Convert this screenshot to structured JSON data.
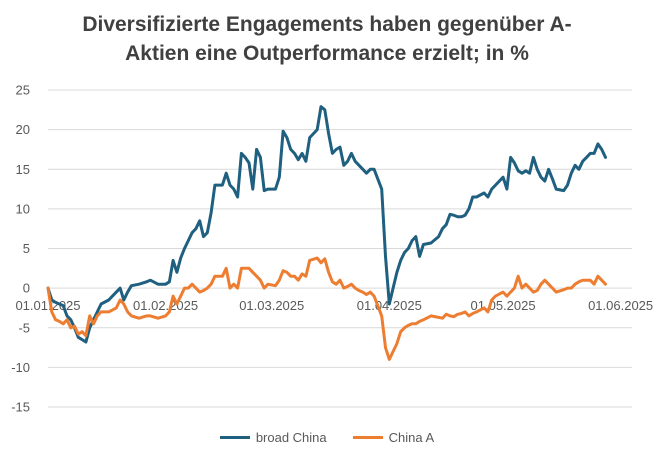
{
  "chart_data": {
    "type": "line",
    "title_line1": "Diversifizierte Engagements haben gegenüber A-",
    "title_line2": "Aktien eine Outperformance erzielt; in %",
    "ylim": [
      -15,
      25
    ],
    "y_ticks": [
      "25",
      "20",
      "15",
      "10",
      "5",
      "0",
      "-5",
      "-10",
      "-15"
    ],
    "x_tick_labels": [
      "01.01.2025",
      "01.02.2025",
      "01.03.2025",
      "01.04.2025",
      "01.05.2025",
      "01.06.2025"
    ],
    "x_tick_days": [
      0,
      31,
      59,
      90,
      120,
      151
    ],
    "legend_position": "bottom",
    "grid": "horizontal",
    "series": [
      {
        "name": "broad China",
        "color": "#1f5f7f",
        "points": [
          [
            0,
            0
          ],
          [
            1,
            -1.5
          ],
          [
            2,
            -1.8
          ],
          [
            3,
            -2.0
          ],
          [
            4,
            -2.2
          ],
          [
            5,
            -3.5
          ],
          [
            6,
            -4.0
          ],
          [
            7,
            -5.0
          ],
          [
            8,
            -6.2
          ],
          [
            9,
            -6.5
          ],
          [
            10,
            -6.8
          ],
          [
            11,
            -5.0
          ],
          [
            12,
            -4.0
          ],
          [
            13,
            -3.0
          ],
          [
            14,
            -2.0
          ],
          [
            16,
            -1.5
          ],
          [
            18,
            -0.5
          ],
          [
            19,
            0.0
          ],
          [
            20,
            -1.5
          ],
          [
            21,
            -0.5
          ],
          [
            22,
            0.3
          ],
          [
            24,
            0.5
          ],
          [
            26,
            0.8
          ],
          [
            27,
            1.0
          ],
          [
            29,
            0.5
          ],
          [
            31,
            0.5
          ],
          [
            32,
            0.8
          ],
          [
            33,
            3.5
          ],
          [
            34,
            2.0
          ],
          [
            35,
            3.8
          ],
          [
            36,
            5.0
          ],
          [
            37,
            6.0
          ],
          [
            38,
            7.0
          ],
          [
            39,
            7.5
          ],
          [
            40,
            8.5
          ],
          [
            41,
            6.5
          ],
          [
            42,
            7.0
          ],
          [
            43,
            9.5
          ],
          [
            44,
            13.0
          ],
          [
            46,
            13.0
          ],
          [
            47,
            14.5
          ],
          [
            48,
            13.0
          ],
          [
            49,
            12.5
          ],
          [
            50,
            11.5
          ],
          [
            51,
            17.0
          ],
          [
            52,
            16.5
          ],
          [
            53,
            15.8
          ],
          [
            54,
            12.5
          ],
          [
            55,
            17.5
          ],
          [
            56,
            16.5
          ],
          [
            57,
            12.3
          ],
          [
            58,
            12.5
          ],
          [
            60,
            12.5
          ],
          [
            61,
            14.0
          ],
          [
            62,
            19.8
          ],
          [
            63,
            19.0
          ],
          [
            64,
            17.5
          ],
          [
            65,
            17.0
          ],
          [
            66,
            16.2
          ],
          [
            67,
            17.0
          ],
          [
            68,
            16.0
          ],
          [
            69,
            19.0
          ],
          [
            71,
            20.0
          ],
          [
            72,
            22.9
          ],
          [
            73,
            22.5
          ],
          [
            74,
            19.5
          ],
          [
            75,
            17.0
          ],
          [
            76,
            17.5
          ],
          [
            77,
            17.8
          ],
          [
            78,
            15.5
          ],
          [
            79,
            16.0
          ],
          [
            80,
            17.0
          ],
          [
            81,
            16.0
          ],
          [
            82,
            15.5
          ],
          [
            83,
            15.0
          ],
          [
            84,
            14.5
          ],
          [
            85,
            15.0
          ],
          [
            86,
            15.0
          ],
          [
            88,
            12.5
          ],
          [
            89,
            4.0
          ],
          [
            90,
            -2.0
          ],
          [
            91,
            0.0
          ],
          [
            92,
            2.0
          ],
          [
            93,
            3.5
          ],
          [
            94,
            4.5
          ],
          [
            95,
            5.0
          ],
          [
            96,
            6.0
          ],
          [
            97,
            6.5
          ],
          [
            98,
            4.0
          ],
          [
            99,
            5.5
          ],
          [
            101,
            5.7
          ],
          [
            103,
            6.5
          ],
          [
            104,
            7.5
          ],
          [
            105,
            8.0
          ],
          [
            106,
            9.3
          ],
          [
            107,
            9.2
          ],
          [
            108,
            9.0
          ],
          [
            109,
            9.0
          ],
          [
            110,
            9.2
          ],
          [
            111,
            10.0
          ],
          [
            112,
            11.5
          ],
          [
            113,
            11.5
          ],
          [
            115,
            12.0
          ],
          [
            116,
            11.5
          ],
          [
            117,
            12.5
          ],
          [
            118,
            13.0
          ],
          [
            120,
            14.0
          ],
          [
            121,
            12.5
          ],
          [
            122,
            16.5
          ],
          [
            123,
            15.8
          ],
          [
            124,
            14.8
          ],
          [
            125,
            14.5
          ],
          [
            126,
            14.8
          ],
          [
            127,
            14.5
          ],
          [
            128,
            16.5
          ],
          [
            129,
            15.0
          ],
          [
            130,
            14.0
          ],
          [
            131,
            13.5
          ],
          [
            132,
            15.0
          ],
          [
            133,
            13.8
          ],
          [
            134,
            12.5
          ],
          [
            136,
            12.3
          ],
          [
            137,
            13.0
          ],
          [
            138,
            14.5
          ],
          [
            139,
            15.5
          ],
          [
            140,
            15.0
          ],
          [
            141,
            16.0
          ],
          [
            142,
            16.5
          ],
          [
            143,
            17.0
          ],
          [
            144,
            17.0
          ],
          [
            145,
            18.2
          ],
          [
            146,
            17.5
          ],
          [
            147,
            16.5
          ]
        ]
      },
      {
        "name": "China A",
        "color": "#ed7d31",
        "points": [
          [
            0,
            0
          ],
          [
            1,
            -3.0
          ],
          [
            2,
            -4.0
          ],
          [
            3,
            -4.2
          ],
          [
            4,
            -4.5
          ],
          [
            5,
            -4.0
          ],
          [
            6,
            -5.0
          ],
          [
            7,
            -4.8
          ],
          [
            8,
            -5.8
          ],
          [
            9,
            -5.5
          ],
          [
            10,
            -6.0
          ],
          [
            11,
            -3.5
          ],
          [
            12,
            -4.5
          ],
          [
            13,
            -3.5
          ],
          [
            14,
            -3.0
          ],
          [
            16,
            -3.0
          ],
          [
            18,
            -2.5
          ],
          [
            19,
            -1.5
          ],
          [
            20,
            -2.0
          ],
          [
            21,
            -3.0
          ],
          [
            22,
            -3.5
          ],
          [
            24,
            -3.8
          ],
          [
            26,
            -3.5
          ],
          [
            27,
            -3.5
          ],
          [
            29,
            -3.8
          ],
          [
            31,
            -3.5
          ],
          [
            32,
            -3.0
          ],
          [
            33,
            -1.0
          ],
          [
            34,
            -2.0
          ],
          [
            35,
            -1.0
          ],
          [
            36,
            0.0
          ],
          [
            37,
            0.0
          ],
          [
            38,
            0.5
          ],
          [
            39,
            0.0
          ],
          [
            40,
            -0.5
          ],
          [
            41,
            -0.3
          ],
          [
            42,
            0.0
          ],
          [
            43,
            0.5
          ],
          [
            44,
            1.5
          ],
          [
            46,
            1.5
          ],
          [
            47,
            2.5
          ],
          [
            48,
            0.0
          ],
          [
            49,
            0.5
          ],
          [
            50,
            0.0
          ],
          [
            51,
            2.5
          ],
          [
            52,
            2.5
          ],
          [
            53,
            2.5
          ],
          [
            54,
            2.0
          ],
          [
            55,
            1.5
          ],
          [
            56,
            1.0
          ],
          [
            57,
            0.0
          ],
          [
            58,
            0.5
          ],
          [
            60,
            0.3
          ],
          [
            61,
            1.0
          ],
          [
            62,
            2.2
          ],
          [
            63,
            2.0
          ],
          [
            64,
            1.5
          ],
          [
            65,
            1.5
          ],
          [
            66,
            1.0
          ],
          [
            67,
            1.8
          ],
          [
            68,
            1.5
          ],
          [
            69,
            3.5
          ],
          [
            71,
            3.8
          ],
          [
            72,
            3.2
          ],
          [
            73,
            3.7
          ],
          [
            74,
            2.0
          ],
          [
            75,
            0.8
          ],
          [
            76,
            0.5
          ],
          [
            77,
            1.0
          ],
          [
            78,
            0.0
          ],
          [
            79,
            0.2
          ],
          [
            80,
            0.5
          ],
          [
            81,
            0.0
          ],
          [
            82,
            -0.3
          ],
          [
            83,
            -0.5
          ],
          [
            84,
            -0.8
          ],
          [
            85,
            -0.5
          ],
          [
            86,
            -1.0
          ],
          [
            88,
            -3.5
          ],
          [
            89,
            -7.5
          ],
          [
            90,
            -9.0
          ],
          [
            91,
            -8.0
          ],
          [
            92,
            -7.0
          ],
          [
            93,
            -5.5
          ],
          [
            94,
            -5.0
          ],
          [
            95,
            -4.7
          ],
          [
            96,
            -4.5
          ],
          [
            97,
            -4.5
          ],
          [
            98,
            -4.2
          ],
          [
            99,
            -4.0
          ],
          [
            101,
            -3.5
          ],
          [
            103,
            -3.7
          ],
          [
            104,
            -3.8
          ],
          [
            105,
            -3.3
          ],
          [
            106,
            -3.5
          ],
          [
            107,
            -3.6
          ],
          [
            108,
            -3.3
          ],
          [
            109,
            -3.2
          ],
          [
            110,
            -3.0
          ],
          [
            111,
            -3.5
          ],
          [
            112,
            -3.2
          ],
          [
            113,
            -3.0
          ],
          [
            115,
            -2.5
          ],
          [
            116,
            -3.0
          ],
          [
            117,
            -1.5
          ],
          [
            118,
            -1.0
          ],
          [
            120,
            -0.5
          ],
          [
            121,
            -1.0
          ],
          [
            122,
            -0.5
          ],
          [
            123,
            0.0
          ],
          [
            124,
            1.5
          ],
          [
            125,
            0.0
          ],
          [
            126,
            0.5
          ],
          [
            127,
            0.0
          ],
          [
            128,
            -0.5
          ],
          [
            129,
            -0.3
          ],
          [
            130,
            0.5
          ],
          [
            131,
            1.0
          ],
          [
            132,
            0.5
          ],
          [
            133,
            0.0
          ],
          [
            134,
            -0.5
          ],
          [
            136,
            -0.2
          ],
          [
            137,
            0.0
          ],
          [
            138,
            0.0
          ],
          [
            139,
            0.5
          ],
          [
            140,
            0.8
          ],
          [
            141,
            1.0
          ],
          [
            142,
            1.0
          ],
          [
            143,
            1.0
          ],
          [
            144,
            0.5
          ],
          [
            145,
            1.5
          ],
          [
            146,
            1.0
          ],
          [
            147,
            0.5
          ]
        ]
      }
    ]
  }
}
